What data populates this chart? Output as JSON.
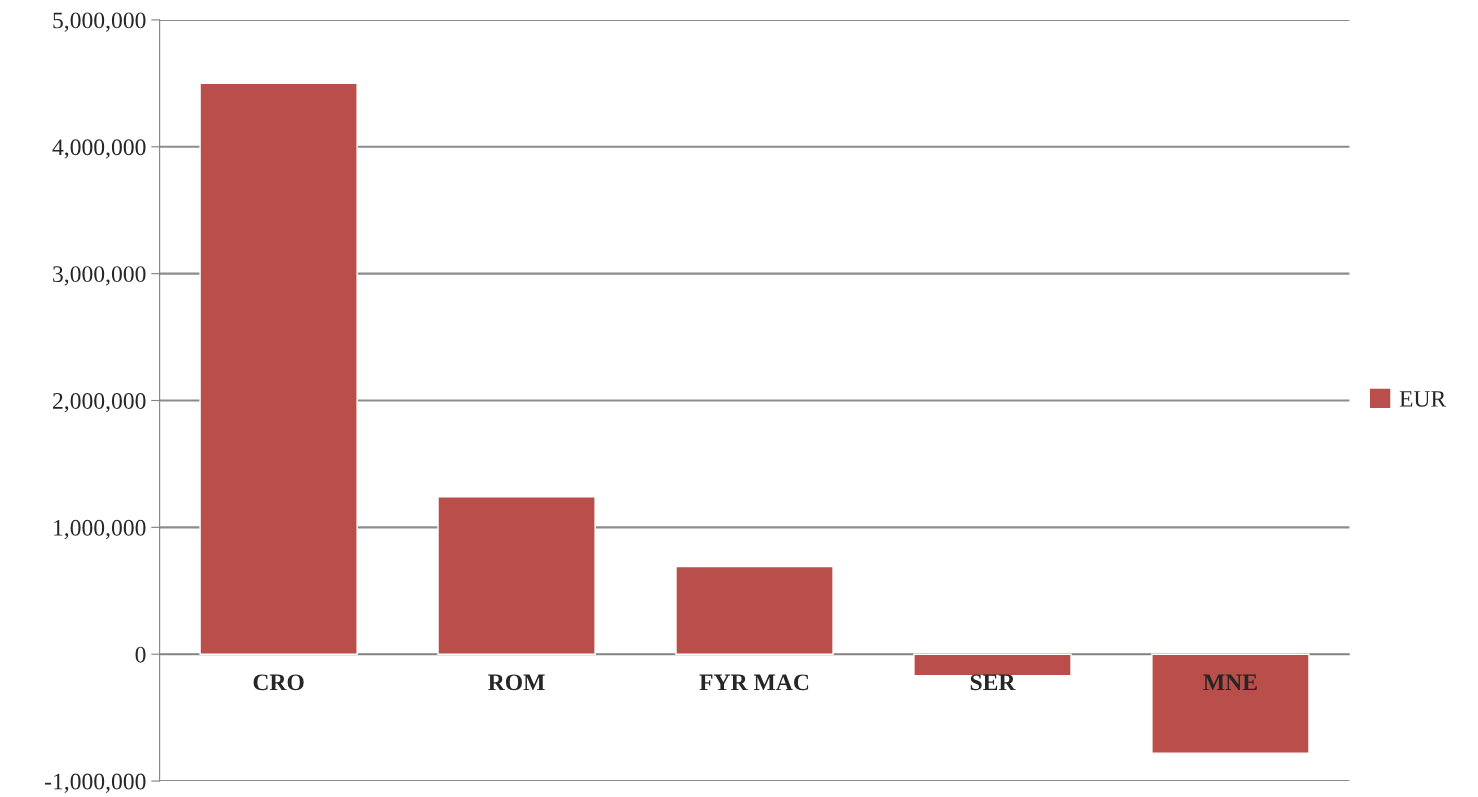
{
  "chart_data": {
    "type": "bar",
    "categories": [
      "CRO",
      "ROM",
      "FYR MAC",
      "SER",
      "MNE"
    ],
    "series": [
      {
        "name": "EUR",
        "color": "#b94e4a",
        "values": [
          4500000,
          1240000,
          690000,
          -170000,
          -780000
        ]
      }
    ],
    "ylim": [
      -1000000,
      5000000
    ],
    "yticks": [
      {
        "value": -1000000,
        "label": "-1,000,000"
      },
      {
        "value": 0,
        "label": "0"
      },
      {
        "value": 1000000,
        "label": "1,000,000"
      },
      {
        "value": 2000000,
        "label": "2,000,000"
      },
      {
        "value": 3000000,
        "label": "3,000,000"
      },
      {
        "value": 4000000,
        "label": "4,000,000"
      },
      {
        "value": 5000000,
        "label": "5,000,000"
      }
    ],
    "grid": "y",
    "legend": "right"
  }
}
